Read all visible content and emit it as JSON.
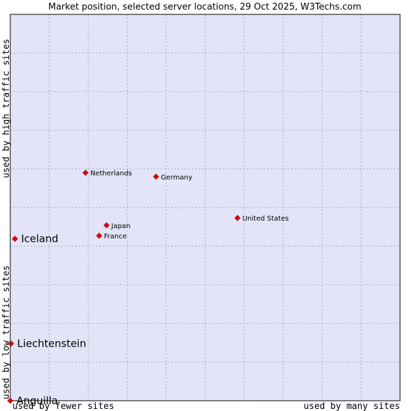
{
  "chart_data": {
    "type": "scatter",
    "title": "Market position, selected server locations, 29 Oct 2025, W3Techs.com",
    "xlabel_left": "used by fewer sites",
    "xlabel_right": "used by many sites",
    "ylabel_bottom": "used by low traffic sites",
    "ylabel_top": "used by high traffic sites",
    "xlim": [
      0,
      100
    ],
    "ylim": [
      0,
      100
    ],
    "grid": true,
    "colors": {
      "plot_background": "#e3e4f7",
      "grid": "#a9a9c0",
      "point": "#e00000"
    },
    "points": [
      {
        "name": "Netherlands",
        "x": 19.3,
        "y": 59.0,
        "emphasis": false
      },
      {
        "name": "Germany",
        "x": 37.4,
        "y": 58.0,
        "emphasis": false
      },
      {
        "name": "United States",
        "x": 58.3,
        "y": 47.3,
        "emphasis": false
      },
      {
        "name": "Japan",
        "x": 24.7,
        "y": 45.4,
        "emphasis": false
      },
      {
        "name": "France",
        "x": 22.8,
        "y": 42.7,
        "emphasis": false
      },
      {
        "name": "Iceland",
        "x": 1.2,
        "y": 41.9,
        "emphasis": true
      },
      {
        "name": "Liechtenstein",
        "x": 0.2,
        "y": 14.8,
        "emphasis": true
      },
      {
        "name": "Anguilla",
        "x": 0.0,
        "y": 0.0,
        "emphasis": true
      }
    ]
  }
}
